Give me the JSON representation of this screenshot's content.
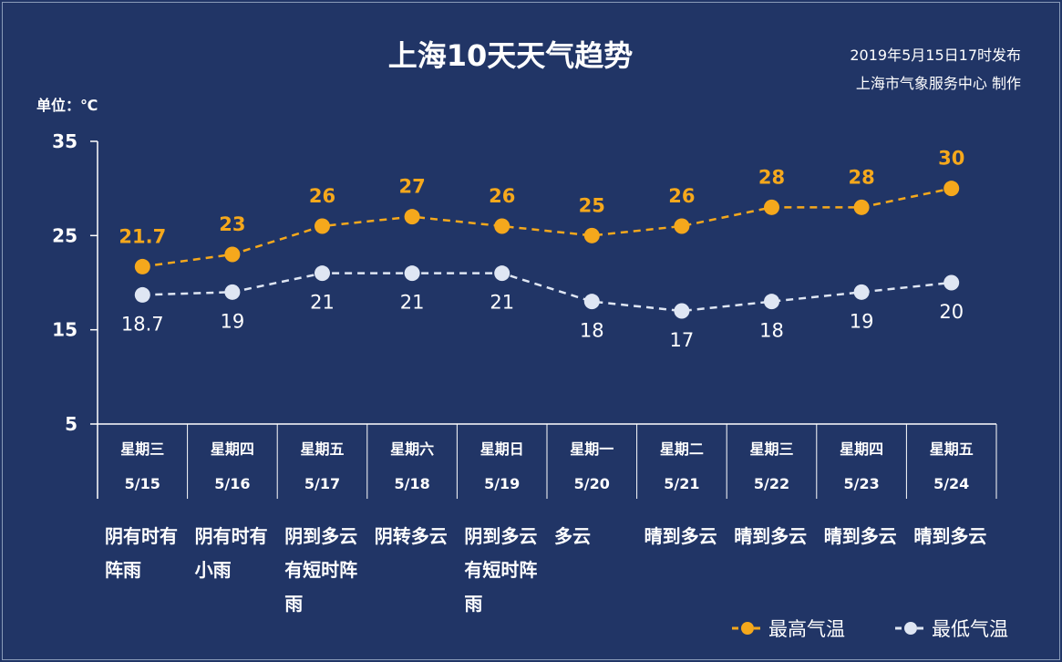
{
  "header": {
    "title": "上海10天天气趋势",
    "issued": "2019年5月15日17时发布",
    "producer": "上海市气象服务中心  制作",
    "unit": "单位：℃"
  },
  "colors": {
    "background": "#213566",
    "high": "#f5a81c",
    "low": "#dfe6f3"
  },
  "chart_data": {
    "type": "line",
    "title": "上海10天天气趋势",
    "ylabel": "单位：℃",
    "ylim": [
      5,
      35
    ],
    "yticks": [
      "5",
      "15",
      "25",
      "35"
    ],
    "categories": [
      "5/15",
      "5/16",
      "5/17",
      "5/18",
      "5/19",
      "5/20",
      "5/21",
      "5/22",
      "5/23",
      "5/24"
    ],
    "weekdays": [
      "星期三",
      "星期四",
      "星期五",
      "星期六",
      "星期日",
      "星期一",
      "星期二",
      "星期三",
      "星期四",
      "星期五"
    ],
    "weather": [
      "阴有时有阵雨",
      "阴有时有小雨",
      "阴到多云有短时阵雨",
      "阴转多云",
      "阴到多云有短时阵雨",
      "多云",
      "晴到多云",
      "晴到多云",
      "晴到多云",
      "晴到多云"
    ],
    "series": [
      {
        "name": "最高气温",
        "values": [
          21.7,
          23,
          26,
          27,
          26,
          25,
          26,
          28,
          28,
          30
        ],
        "labels": [
          "21.7",
          "23",
          "26",
          "27",
          "26",
          "25",
          "26",
          "28",
          "28",
          "30"
        ]
      },
      {
        "name": "最低气温",
        "values": [
          18.7,
          19,
          21,
          21,
          21,
          18,
          17,
          18,
          19,
          20
        ],
        "labels": [
          "18.7",
          "19",
          "21",
          "21",
          "21",
          "18",
          "17",
          "18",
          "19",
          "20"
        ]
      }
    ],
    "legend": "bottom-right",
    "grid": false
  }
}
